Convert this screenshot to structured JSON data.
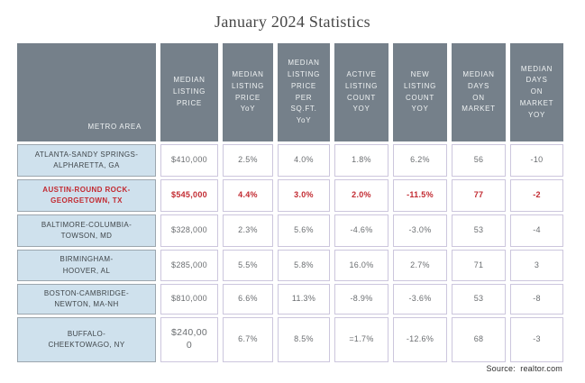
{
  "title": "January 2024 Statistics",
  "source": "Source:  realtor.com",
  "colors": {
    "header_bg": "#75808A",
    "header_text": "#EFF2F3",
    "metro_bg": "#CFE1ED",
    "metro_border": "#9CA6AE",
    "data_border": "#CCC6DD",
    "data_text": "#6B6E71",
    "highlight_red": "#C22A31"
  },
  "table": {
    "headers": [
      "METRO AREA",
      "MEDIAN\nLISTING\nPRICE",
      "MEDIAN\nLISTING\nPRICE\nYoY",
      "MEDIAN\nLISTING\nPRICE\nPER\nSQ.FT.\nYoY",
      "ACTIVE\nLISTING\nCOUNT\nYOY",
      "NEW\nLISTING\nCOUNT\nYOY",
      "MEDIAN\nDAYS\nON\nMARKET",
      "MEDIAN\nDAYS\nON\nMARKET\nYOY"
    ],
    "rows": [
      {
        "metro": "ATLANTA-SANDY SPRINGS-\nALPHARETTA, GA",
        "highlight": false,
        "values": [
          "$410,000",
          "2.5%",
          "4.0%",
          "1.8%",
          "6.2%",
          "56",
          "-10"
        ]
      },
      {
        "metro": "AUSTIN-ROUND ROCK-\nGEORGETOWN, TX",
        "highlight": true,
        "values": [
          "$545,000",
          "4.4%",
          "3.0%",
          "2.0%",
          "-11.5%",
          "77",
          "-2"
        ]
      },
      {
        "metro": "BALTIMORE-COLUMBIA-\nTOWSON, MD",
        "highlight": false,
        "values": [
          "$328,000",
          "2.3%",
          "5.6%",
          "-4.6%",
          "-3.0%",
          "53",
          "-4"
        ]
      },
      {
        "metro": "BIRMINGHAM-\nHOOVER, AL",
        "highlight": false,
        "values": [
          "$285,000",
          "5.5%",
          "5.8%",
          "16.0%",
          "2.7%",
          "71",
          "3"
        ]
      },
      {
        "metro": "BOSTON-CAMBRIDGE-\nNEWTON, MA-NH",
        "highlight": false,
        "values": [
          "$810,000",
          "6.6%",
          "11.3%",
          "-8.9%",
          "-3.6%",
          "53",
          "-8"
        ]
      },
      {
        "metro": "BUFFALO-\nCHEEKTOWAGO, NY",
        "highlight": false,
        "values": [
          "$240,00\n0",
          "6.7%",
          "8.5%",
          "=1.7%",
          "-12.6%",
          "68",
          "-3"
        ]
      }
    ]
  },
  "chart_data": {
    "type": "table",
    "title": "January 2024 Statistics",
    "source": "realtor.com",
    "columns": [
      "METRO AREA",
      "MEDIAN LISTING PRICE",
      "MEDIAN LISTING PRICE YoY",
      "MEDIAN LISTING PRICE PER SQ.FT. YoY",
      "ACTIVE LISTING COUNT YOY",
      "NEW LISTING COUNT YOY",
      "MEDIAN DAYS ON MARKET",
      "MEDIAN DAYS ON MARKET YOY"
    ],
    "highlighted_row": "AUSTIN-ROUND ROCK-GEORGETOWN, TX",
    "rows": [
      [
        "ATLANTA-SANDY SPRINGS-ALPHARETTA, GA",
        "$410,000",
        "2.5%",
        "4.0%",
        "1.8%",
        "6.2%",
        "56",
        "-10"
      ],
      [
        "AUSTIN-ROUND ROCK-GEORGETOWN, TX",
        "$545,000",
        "4.4%",
        "3.0%",
        "2.0%",
        "-11.5%",
        "77",
        "-2"
      ],
      [
        "BALTIMORE-COLUMBIA-TOWSON, MD",
        "$328,000",
        "2.3%",
        "5.6%",
        "-4.6%",
        "-3.0%",
        "53",
        "-4"
      ],
      [
        "BIRMINGHAM-HOOVER, AL",
        "$285,000",
        "5.5%",
        "5.8%",
        "16.0%",
        "2.7%",
        "71",
        "3"
      ],
      [
        "BOSTON-CAMBRIDGE-NEWTON, MA-NH",
        "$810,000",
        "6.6%",
        "11.3%",
        "-8.9%",
        "-3.6%",
        "53",
        "-8"
      ],
      [
        "BUFFALO-CHEEKTOWAGO, NY",
        "$240,000",
        "6.7%",
        "8.5%",
        "=1.7%",
        "-12.6%",
        "68",
        "-3"
      ]
    ]
  }
}
